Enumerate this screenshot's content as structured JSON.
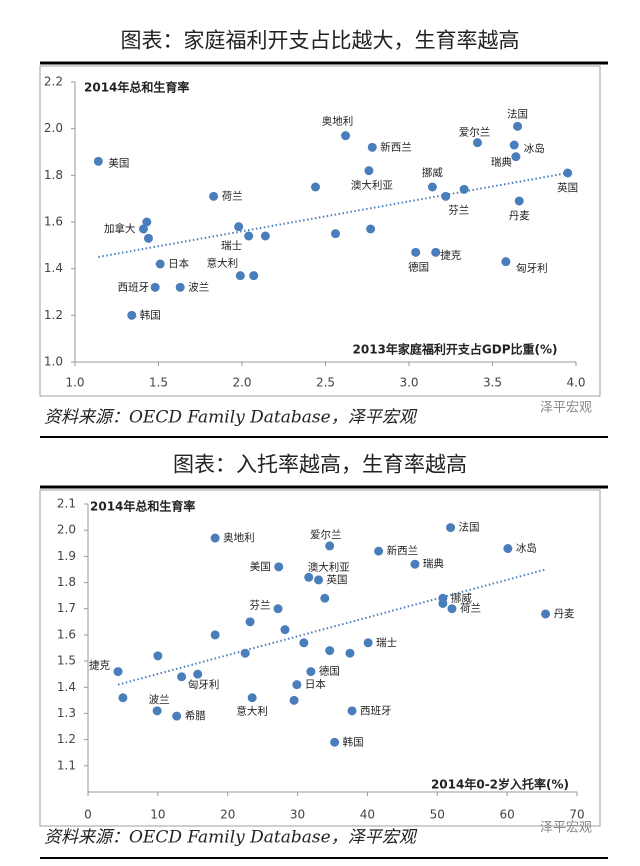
{
  "chart_data": [
    {
      "type": "scatter",
      "title": "图表：家庭福利开支占比越大，生育率越高",
      "y_label": "2014年总和生育率",
      "x_label": "2013年家庭福利开支占GDP比重(%)",
      "source": "资料来源：OECD Family Database，泽平宏观",
      "watermark": "泽平宏观",
      "color": "#4a7ebb",
      "x": [
        1.14,
        1.43,
        1.41,
        1.44,
        1.51,
        1.48,
        1.63,
        1.34,
        1.83,
        1.98,
        2.04,
        2.14,
        1.99,
        2.07,
        2.44,
        2.56,
        2.62,
        2.78,
        2.76,
        2.77,
        3.14,
        3.22,
        3.33,
        3.04,
        3.16,
        3.41,
        3.65,
        3.63,
        3.64,
        3.95,
        3.66,
        3.58
      ],
      "values": [
        1.86,
        1.6,
        1.57,
        1.53,
        1.42,
        1.32,
        1.32,
        1.2,
        1.71,
        1.58,
        1.54,
        1.54,
        1.37,
        1.37,
        1.75,
        1.55,
        1.97,
        1.92,
        1.82,
        1.57,
        1.75,
        1.71,
        1.74,
        1.47,
        1.47,
        1.94,
        2.01,
        1.93,
        1.88,
        1.81,
        1.69,
        1.43
      ],
      "point_labels": [
        "美国",
        null,
        "加拿大",
        null,
        "日本",
        "西班牙",
        "波兰",
        "韩国",
        "荷兰",
        null,
        "瑞士",
        null,
        "意大利",
        null,
        null,
        null,
        "奥地利",
        "新西兰",
        "澳大利亚",
        null,
        "挪威",
        "芬兰",
        null,
        "德国",
        "捷克",
        "爱尔兰",
        "法国",
        "冰岛",
        "瑞典",
        "英国",
        "丹麦",
        "匈牙利"
      ],
      "trendline": {
        "x": [
          1.14,
          3.95
        ],
        "values": [
          1.45,
          1.81
        ]
      },
      "xlim": [
        1.0,
        4.0
      ],
      "ylim": [
        1.0,
        2.2
      ],
      "xticks": [
        {
          "value": 1.0,
          "label": "1.0"
        },
        1.5,
        {
          "value": 2.0,
          "label": "2.0"
        },
        2.5,
        {
          "value": 3.0,
          "label": "3.0"
        },
        3.5,
        {
          "value": 4.0,
          "label": "4.0"
        }
      ],
      "yticks": [
        {
          "value": 1.0,
          "label": "1.0"
        },
        1.2,
        1.4,
        1.6,
        1.8,
        {
          "value": 2.0,
          "label": "2.0"
        },
        2.2
      ]
    },
    {
      "type": "scatter",
      "title": "图表：入托率越高，生育率越高",
      "y_label": "2014年总和生育率",
      "x_label": "2014年0-2岁入托率(%)",
      "source": "资料来源：OECD Family Database，泽平宏观",
      "watermark": "泽平宏观",
      "color": "#4a7ebb",
      "x": [
        4.3,
        5.0,
        10.0,
        13.4,
        15.7,
        9.9,
        12.7,
        18.2,
        18.2,
        23.2,
        22.5,
        23.5,
        27.3,
        27.2,
        28.2,
        29.5,
        29.9,
        31.9,
        30.9,
        31.6,
        33.0,
        33.9,
        34.6,
        34.6,
        35.3,
        37.8,
        37.5,
        40.1,
        41.6,
        46.8,
        50.8,
        50.8,
        52.1,
        51.9,
        60.1,
        65.5
      ],
      "values": [
        1.46,
        1.36,
        1.52,
        1.44,
        1.45,
        1.31,
        1.29,
        1.97,
        1.6,
        1.65,
        1.53,
        1.36,
        1.86,
        1.7,
        1.62,
        1.35,
        1.41,
        1.46,
        1.57,
        1.82,
        1.81,
        1.74,
        1.94,
        1.54,
        1.19,
        1.31,
        1.53,
        1.57,
        1.92,
        1.87,
        1.74,
        1.72,
        1.7,
        2.01,
        1.93,
        1.68
      ],
      "point_labels": [
        "捷克",
        null,
        null,
        "匈牙利",
        null,
        "波兰",
        "希腊",
        "奥地利",
        null,
        null,
        null,
        "意大利",
        "美国",
        "芬兰",
        null,
        null,
        "日本",
        "德国",
        null,
        "澳大利亚",
        "英国",
        null,
        "爱尔兰",
        null,
        "韩国",
        "西班牙",
        null,
        "瑞士",
        "新西兰",
        "瑞典",
        "挪威",
        null,
        "荷兰",
        "法国",
        "冰岛",
        "丹麦"
      ],
      "trendline": {
        "x": [
          4.3,
          65.5
        ],
        "values": [
          1.41,
          1.85
        ]
      },
      "xlim": [
        0,
        70
      ],
      "ylim": [
        1.0,
        2.1
      ],
      "xticks": [
        0,
        10,
        20,
        30,
        40,
        50,
        60,
        70
      ],
      "yticks": [
        1.1,
        1.2,
        1.3,
        1.4,
        1.5,
        1.6,
        1.7,
        1.8,
        1.9,
        {
          "value": 2.0,
          "label": "2.0"
        },
        2.1
      ]
    }
  ]
}
